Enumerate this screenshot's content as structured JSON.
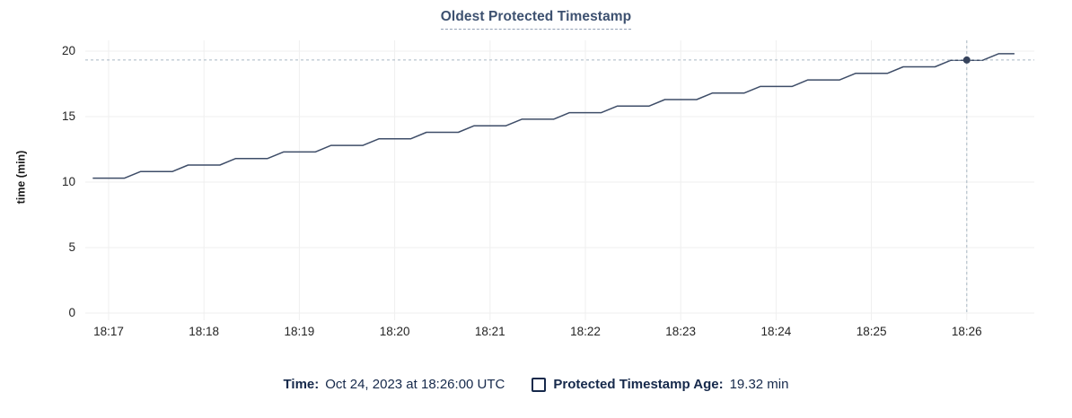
{
  "colors": {
    "line": "#3e4d68",
    "highlight_dot": "#36435c",
    "crosshair": "#a8b7c3",
    "grid": "#efefef",
    "title": "#3d5170",
    "legend_text": "#16294b",
    "tick_text": "#242424"
  },
  "legend": {
    "time_label": "Time:",
    "time_value": "Oct 24, 2023 at 18:26:00 UTC",
    "series_label": "Protected Timestamp Age:",
    "series_value": "19.32 min"
  },
  "chart_data": {
    "type": "line",
    "title": "Oldest Protected Timestamp",
    "xlabel": "",
    "ylabel": "time (min)",
    "ylim": [
      0,
      20
    ],
    "y_ticks": [
      0,
      5,
      10,
      15,
      20
    ],
    "x_ticks": [
      "18:17",
      "18:18",
      "18:19",
      "18:20",
      "18:21",
      "18:22",
      "18:23",
      "18:24",
      "18:25",
      "18:26"
    ],
    "x_range": [
      "18:16:50",
      "18:26:30"
    ],
    "grid": true,
    "legend_position": "bottom",
    "series": [
      {
        "name": "Protected Timestamp Age",
        "unit": "min",
        "points": [
          [
            "18:16:50",
            10.3
          ],
          [
            "18:17:00",
            10.3
          ],
          [
            "18:17:10",
            10.3
          ],
          [
            "18:17:20",
            10.8
          ],
          [
            "18:17:30",
            10.8
          ],
          [
            "18:17:40",
            10.8
          ],
          [
            "18:17:50",
            11.3
          ],
          [
            "18:18:00",
            11.3
          ],
          [
            "18:18:10",
            11.3
          ],
          [
            "18:18:20",
            11.8
          ],
          [
            "18:18:30",
            11.8
          ],
          [
            "18:18:40",
            11.8
          ],
          [
            "18:18:50",
            12.3
          ],
          [
            "18:19:00",
            12.3
          ],
          [
            "18:19:10",
            12.3
          ],
          [
            "18:19:20",
            12.8
          ],
          [
            "18:19:30",
            12.8
          ],
          [
            "18:19:40",
            12.8
          ],
          [
            "18:19:50",
            13.3
          ],
          [
            "18:20:00",
            13.3
          ],
          [
            "18:20:10",
            13.3
          ],
          [
            "18:20:20",
            13.8
          ],
          [
            "18:20:30",
            13.8
          ],
          [
            "18:20:40",
            13.8
          ],
          [
            "18:20:50",
            14.3
          ],
          [
            "18:21:00",
            14.3
          ],
          [
            "18:21:10",
            14.3
          ],
          [
            "18:21:20",
            14.8
          ],
          [
            "18:21:30",
            14.8
          ],
          [
            "18:21:40",
            14.8
          ],
          [
            "18:21:50",
            15.3
          ],
          [
            "18:22:00",
            15.3
          ],
          [
            "18:22:10",
            15.3
          ],
          [
            "18:22:20",
            15.8
          ],
          [
            "18:22:30",
            15.8
          ],
          [
            "18:22:40",
            15.8
          ],
          [
            "18:22:50",
            16.3
          ],
          [
            "18:23:00",
            16.3
          ],
          [
            "18:23:10",
            16.3
          ],
          [
            "18:23:20",
            16.8
          ],
          [
            "18:23:30",
            16.8
          ],
          [
            "18:23:40",
            16.8
          ],
          [
            "18:23:50",
            17.3
          ],
          [
            "18:24:00",
            17.3
          ],
          [
            "18:24:10",
            17.3
          ],
          [
            "18:24:20",
            17.8
          ],
          [
            "18:24:30",
            17.8
          ],
          [
            "18:24:40",
            17.8
          ],
          [
            "18:24:50",
            18.3
          ],
          [
            "18:25:00",
            18.3
          ],
          [
            "18:25:10",
            18.3
          ],
          [
            "18:25:20",
            18.8
          ],
          [
            "18:25:30",
            18.8
          ],
          [
            "18:25:40",
            18.8
          ],
          [
            "18:25:50",
            19.3
          ],
          [
            "18:26:00",
            19.3
          ],
          [
            "18:26:10",
            19.3
          ],
          [
            "18:26:20",
            19.8
          ],
          [
            "18:26:30",
            19.8
          ]
        ]
      }
    ],
    "highlight": {
      "x": "18:26:00",
      "y": 19.32,
      "time_label": "Oct 24, 2023 at 18:26:00 UTC",
      "value_label": "19.32 min"
    }
  }
}
